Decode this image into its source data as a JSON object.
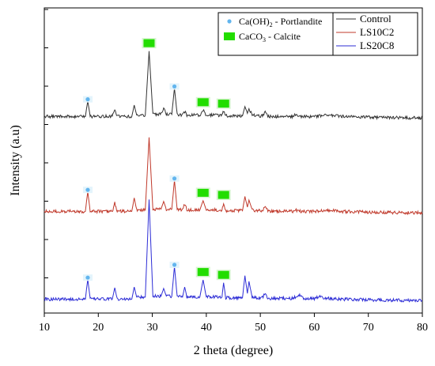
{
  "chart_data": {
    "type": "line",
    "xlabel": "2 theta (degree)",
    "ylabel": "Intensity (a.u)",
    "xlim": [
      10,
      80
    ],
    "xticks": [
      10,
      20,
      30,
      40,
      50,
      60,
      70,
      80
    ],
    "grid": false,
    "legend_position": "top-right",
    "series": [
      {
        "name": "Control",
        "color": "#333333",
        "x": [
          10,
          15,
          17,
          17.6,
          18.05,
          18.5,
          20,
          22.6,
          23.05,
          23.5,
          26.2,
          26.65,
          27.1,
          28.7,
          29.4,
          30.1,
          31.6,
          32.1,
          32.6,
          33.6,
          34.1,
          34.6,
          35.6,
          36.0,
          36.4,
          38.8,
          39.4,
          40.0,
          42.9,
          43.2,
          43.6,
          46.7,
          47.15,
          47.6,
          47.9,
          48.5,
          49.2,
          50.4,
          50.9,
          51.4,
          56.0,
          56.5,
          57.0,
          60.0,
          62.5,
          65.0,
          70.0,
          75.0,
          80.0
        ],
        "y": [
          0.2,
          0.2,
          0.2,
          0.2,
          1.3,
          0.2,
          0.2,
          0.2,
          0.75,
          0.2,
          0.2,
          1.0,
          0.3,
          0.3,
          4.8,
          0.35,
          0.35,
          0.8,
          0.35,
          0.35,
          2.2,
          0.35,
          0.3,
          0.55,
          0.3,
          0.3,
          0.65,
          0.3,
          0.3,
          0.55,
          0.25,
          0.25,
          0.9,
          0.45,
          0.7,
          0.3,
          0.25,
          0.25,
          0.55,
          0.2,
          0.2,
          0.35,
          0.2,
          0.2,
          0.3,
          0.2,
          0.15,
          0.12,
          0.1
        ]
      },
      {
        "name": "LS10C2",
        "color": "#c0392b",
        "x": [
          10,
          15,
          17,
          17.6,
          18.05,
          18.5,
          20,
          22.6,
          23.05,
          23.5,
          26.2,
          26.65,
          27.1,
          28.7,
          29.4,
          30.1,
          31.6,
          32.1,
          32.6,
          33.6,
          34.1,
          34.6,
          35.6,
          36.0,
          36.4,
          38.8,
          39.4,
          40.0,
          42.9,
          43.2,
          43.6,
          46.7,
          47.15,
          47.6,
          47.9,
          48.5,
          49.2,
          50.4,
          50.9,
          51.4,
          56.0,
          56.5,
          57.0,
          60.0,
          62.5,
          65.0,
          70.0,
          75.0,
          80.0
        ],
        "y": [
          0.2,
          0.2,
          0.2,
          0.2,
          1.6,
          0.2,
          0.2,
          0.2,
          0.8,
          0.2,
          0.2,
          1.15,
          0.3,
          0.3,
          5.4,
          0.35,
          0.35,
          0.9,
          0.35,
          0.35,
          2.4,
          0.35,
          0.3,
          0.7,
          0.3,
          0.3,
          0.95,
          0.3,
          0.3,
          0.8,
          0.25,
          0.25,
          1.25,
          0.5,
          1.0,
          0.3,
          0.25,
          0.25,
          0.6,
          0.2,
          0.2,
          0.35,
          0.2,
          0.2,
          0.3,
          0.2,
          0.15,
          0.12,
          0.1
        ]
      },
      {
        "name": "LS20C8",
        "color": "#2d2dd6",
        "x": [
          10,
          15,
          17,
          17.6,
          18.05,
          18.5,
          20,
          22.6,
          23.05,
          23.5,
          26.2,
          26.65,
          27.1,
          28.7,
          29.4,
          30.1,
          31.6,
          32.1,
          32.6,
          33.6,
          34.1,
          34.6,
          35.6,
          36.0,
          36.4,
          38.8,
          39.4,
          40.0,
          42.9,
          43.2,
          43.6,
          46.7,
          47.15,
          47.6,
          47.9,
          48.5,
          49.2,
          50.4,
          50.9,
          51.4,
          56.0,
          57.4,
          58.0,
          60.0,
          61.0,
          62.5,
          65.0,
          70.0,
          75.0,
          80.0
        ],
        "y": [
          0.2,
          0.2,
          0.2,
          0.2,
          1.6,
          0.2,
          0.2,
          0.2,
          1.0,
          0.2,
          0.2,
          1.05,
          0.35,
          0.35,
          7.2,
          0.4,
          0.4,
          0.95,
          0.4,
          0.4,
          2.5,
          0.4,
          0.35,
          1.05,
          0.35,
          0.35,
          1.55,
          0.35,
          0.35,
          1.35,
          0.3,
          0.3,
          1.85,
          0.6,
          1.45,
          0.3,
          0.3,
          0.3,
          0.6,
          0.25,
          0.25,
          0.5,
          0.25,
          0.25,
          0.35,
          0.25,
          0.2,
          0.15,
          0.12,
          0.1
        ]
      }
    ],
    "annotations": {
      "portlandite_markers": [
        {
          "series": 0,
          "x": 18.05
        },
        {
          "series": 0,
          "x": 34.1
        },
        {
          "series": 1,
          "x": 18.05
        },
        {
          "series": 1,
          "x": 34.1
        },
        {
          "series": 2,
          "x": 18.05
        },
        {
          "series": 2,
          "x": 34.1
        }
      ],
      "calcite_markers": [
        {
          "series": 0,
          "x": 29.4
        },
        {
          "series": 0,
          "x": 39.4
        },
        {
          "series": 0,
          "x": 43.2
        },
        {
          "series": 1,
          "x": 39.4
        },
        {
          "series": 1,
          "x": 43.2
        },
        {
          "series": 2,
          "x": 39.4
        },
        {
          "series": 2,
          "x": 43.2
        }
      ]
    },
    "markers_legend": [
      {
        "label_main": "Ca(OH)",
        "label_sub": "2",
        "label_rest": " - Portlandite",
        "color": "#62b5ee",
        "shape": "circle"
      },
      {
        "label_main": "CaCO",
        "label_sub": "3",
        "label_rest": " - Calcite",
        "color": "#22dd00",
        "shape": "square"
      }
    ]
  }
}
